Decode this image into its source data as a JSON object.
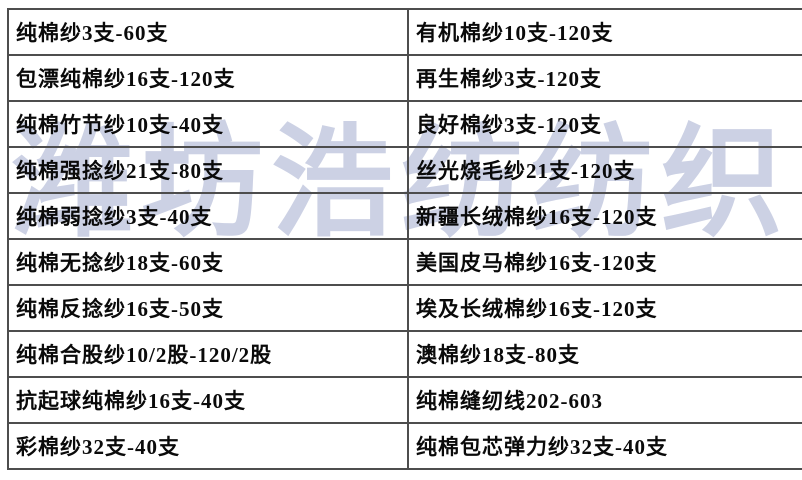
{
  "watermark": {
    "text": "潍坊浩纺纺织",
    "color": "#ccd1e4"
  },
  "colors": {
    "background": "#ffffff",
    "grid_line": "#4d4d4d",
    "text": "#0a0a0a"
  },
  "table": {
    "columns": 2,
    "rows": [
      {
        "left": "纯棉纱3支-60支",
        "right": "有机棉纱10支-120支"
      },
      {
        "left": "包漂纯棉纱16支-120支",
        "right": "再生棉纱3支-120支"
      },
      {
        "left": "纯棉竹节纱10支-40支",
        "right": "良好棉纱3支-120支"
      },
      {
        "left": "纯棉强捻纱21支-80支",
        "right": "丝光烧毛纱21支-120支"
      },
      {
        "left": "纯棉弱捻纱3支-40支",
        "right": "新疆长绒棉纱16支-120支"
      },
      {
        "left": "纯棉无捻纱18支-60支",
        "right": "美国皮马棉纱16支-120支"
      },
      {
        "left": "纯棉反捻纱16支-50支",
        "right": "埃及长绒棉纱16支-120支"
      },
      {
        "left": "纯棉合股纱10/2股-120/2股",
        "right": "澳棉纱18支-80支"
      },
      {
        "left": "抗起球纯棉纱16支-40支",
        "right": "纯棉缝纫线202-603"
      },
      {
        "left": "彩棉纱32支-40支",
        "right": "纯棉包芯弹力纱32支-40支"
      }
    ]
  }
}
